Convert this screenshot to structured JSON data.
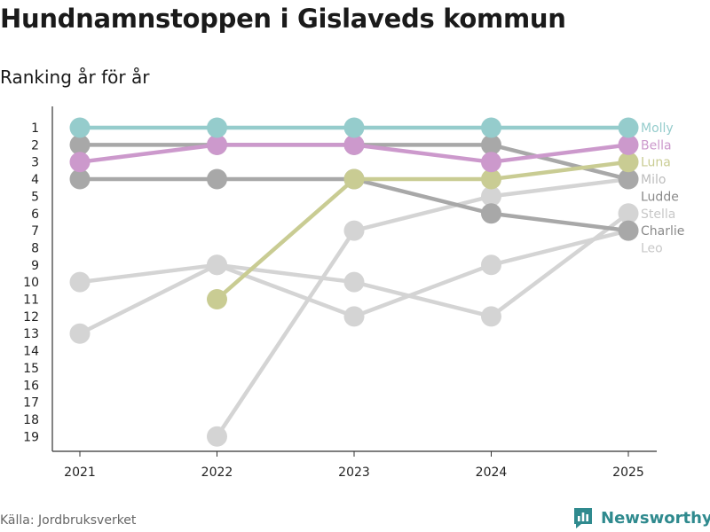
{
  "title": "Hundnamnstoppen i Gislaveds kommun",
  "subtitle": "Ranking år för år",
  "source": "Källa: Jordbruksverket",
  "brand": "Newsworthy",
  "icons": {
    "logo": "newsworthy-chart-logo-icon"
  },
  "colors": {
    "brand": "#2f8a8e",
    "axis": "#333333",
    "text": "#222222"
  },
  "chart_data": {
    "type": "line",
    "title": "Hundnamnstoppen i Gislaveds kommun",
    "subtitle": "Ranking år för år",
    "xlabel": "",
    "ylabel": "",
    "x": [
      "2021",
      "2022",
      "2023",
      "2024",
      "2025"
    ],
    "yticks": [
      "1",
      "2",
      "3",
      "4",
      "5",
      "6",
      "7",
      "8",
      "9",
      "10",
      "11",
      "12",
      "13",
      "14",
      "15",
      "16",
      "17",
      "18",
      "19"
    ],
    "ylim": [
      1,
      19
    ],
    "y_reversed": true,
    "series": [
      {
        "name": "Leo",
        "color": "#d4d4d4",
        "values": [
          10,
          9,
          12,
          9,
          7
        ]
      },
      {
        "name": "Stella",
        "color": "#d4d4d4",
        "values": [
          13,
          9,
          10,
          12,
          6
        ]
      },
      {
        "name": "Ludde",
        "color": "#d4d4d4",
        "values": [
          null,
          19,
          7,
          5,
          4
        ]
      },
      {
        "name": "Charlie",
        "color": "#a8a8a8",
        "values": [
          4,
          4,
          4,
          6,
          7
        ]
      },
      {
        "name": "Milo",
        "color": "#a8a8a8",
        "values": [
          2,
          2,
          2,
          2,
          4
        ]
      },
      {
        "name": "Luna",
        "color": "#c9cc93",
        "values": [
          null,
          11,
          4,
          4,
          3
        ]
      },
      {
        "name": "Bella",
        "color": "#cc99cc",
        "values": [
          3,
          2,
          2,
          3,
          2
        ]
      },
      {
        "name": "Molly",
        "color": "#95cccc",
        "values": [
          1,
          1,
          1,
          1,
          1
        ]
      }
    ],
    "end_labels": [
      {
        "name": "Molly",
        "rank": 1,
        "color": "#95cccc"
      },
      {
        "name": "Bella",
        "rank": 2,
        "color": "#cc99cc"
      },
      {
        "name": "Luna",
        "rank": 3,
        "color": "#c9cc93"
      },
      {
        "name": "Milo",
        "rank": 4,
        "color": "#bdbdbd"
      },
      {
        "name": "Ludde",
        "rank": 5,
        "color": "#8a8a8a"
      },
      {
        "name": "Stella",
        "rank": 6,
        "color": "#c8c8c8"
      },
      {
        "name": "Charlie",
        "rank": 7,
        "color": "#8a8a8a"
      },
      {
        "name": "Leo",
        "rank": 8,
        "color": "#c8c8c8"
      }
    ]
  }
}
